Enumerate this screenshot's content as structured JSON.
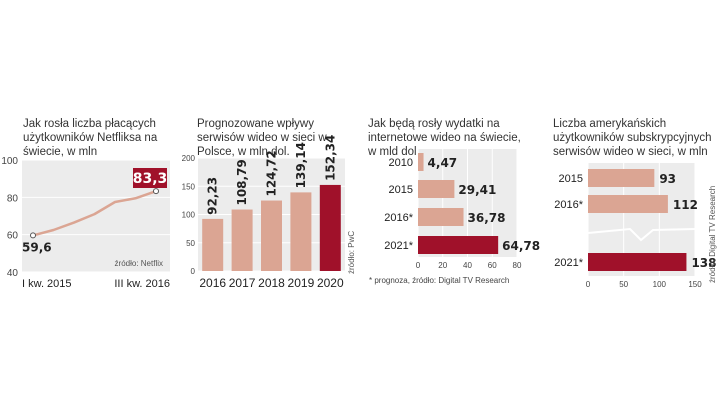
{
  "colors": {
    "bar": "#dba593",
    "highlight": "#a0112a",
    "plot_bg": "#ececec",
    "line": "#dba593",
    "text": "#222222"
  },
  "chart_data": [
    {
      "type": "line",
      "title": "Jak rosła liczba płacących użytkowników Netfliksa na świecie, w mln",
      "x_labels": [
        "I kw. 2015",
        "III kw. 2016"
      ],
      "y": [
        59.6,
        62.5,
        66.5,
        71,
        77.5,
        79.5,
        83.3
      ],
      "y_ticks": [
        "100",
        "80",
        "60",
        "40"
      ],
      "ylim": [
        40,
        100
      ],
      "start_label": "59,6",
      "end_label": "83,3",
      "source": "źródło: Netflix",
      "grid": true
    },
    {
      "type": "bar",
      "title": "Prognozowane wpływy serwisów wideo w sieci w Polsce, w mln dol.",
      "categories": [
        "2016",
        "2017",
        "2018",
        "2019",
        "2020"
      ],
      "values": [
        92.23,
        108.79,
        124.72,
        139.14,
        152.34
      ],
      "labels": [
        "92,23",
        "108,79",
        "124,72",
        "139,14",
        "152,34"
      ],
      "y_ticks": [
        "200",
        "150",
        "100",
        "50",
        "0"
      ],
      "ylim": [
        0,
        200
      ],
      "source": "źródło: PwC",
      "grid": true
    },
    {
      "type": "bar",
      "orientation": "horizontal",
      "title": "Jak będą rosły wydatki na internetowe wideo na świecie, w mld dol.",
      "categories": [
        "2010",
        "2015",
        "2016*",
        "2021*"
      ],
      "values": [
        4.47,
        29.41,
        36.78,
        64.78
      ],
      "labels": [
        "4,47",
        "29,41",
        "36,78",
        "64,78"
      ],
      "x_ticks": [
        "0",
        "20",
        "40",
        "60",
        "80"
      ],
      "xlim": [
        0,
        80
      ],
      "note": "* prognoza, źródło: Digital TV Research",
      "grid": true
    },
    {
      "type": "bar",
      "orientation": "horizontal",
      "title": "Liczba amerykańskich użytkowników subskrypcyjnych serwisów wideo w sieci, w mln",
      "categories": [
        "2015",
        "2016*",
        "2021*"
      ],
      "values": [
        93,
        112,
        138
      ],
      "labels": [
        "93",
        "112",
        "138"
      ],
      "x_ticks": [
        "0",
        "50",
        "100",
        "150"
      ],
      "xlim": [
        0,
        150
      ],
      "source": "źródło: Digital TV Research",
      "grid": true
    }
  ]
}
